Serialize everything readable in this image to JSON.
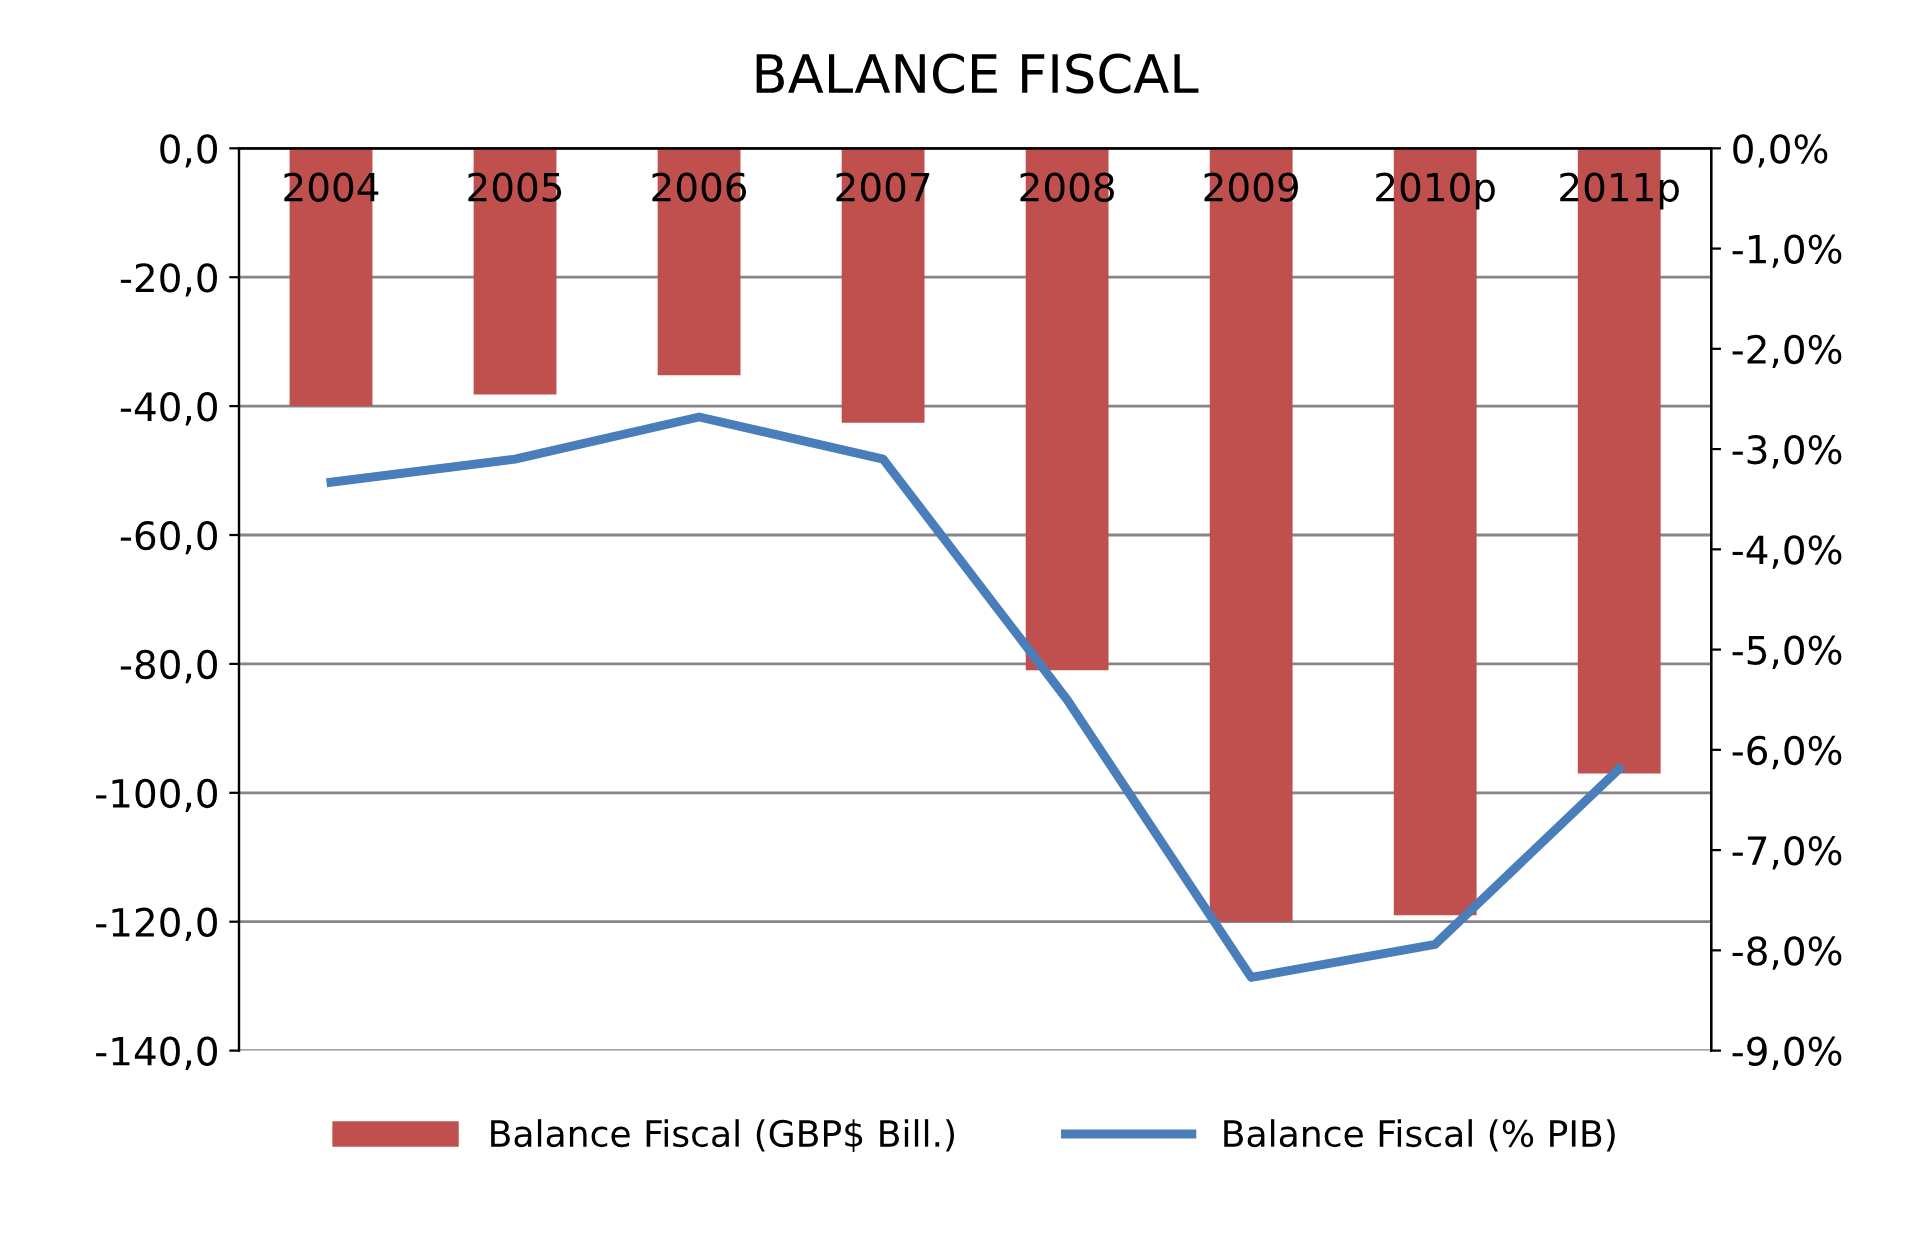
{
  "chart_data": {
    "type": "bar",
    "title": "BALANCE FISCAL",
    "categories": [
      "2004",
      "2005",
      "2006",
      "2007",
      "2008",
      "2009",
      "2010p",
      "2011p"
    ],
    "series": [
      {
        "name": "Balance Fiscal (GBP$ Bill.)",
        "color": "#c0504d",
        "values": [
          -40,
          -38.2,
          -35.2,
          -42.6,
          -81,
          -120,
          -119,
          -97
        ]
      },
      {
        "name": "Balance Fiscal (% PIB)",
        "type": "line",
        "axis": "y2",
        "color": "#4a7ebb",
        "values": [
          -3.33,
          -3.1,
          -2.68,
          -3.1,
          -5.5,
          -8.27,
          -7.94,
          -6.19
        ]
      }
    ],
    "ylim": [
      -140,
      0
    ],
    "yticks": [
      {
        "value": 0,
        "label": "0,0"
      },
      {
        "value": -20,
        "label": "-20,0"
      },
      {
        "value": -40,
        "label": "-40,0"
      },
      {
        "value": -60,
        "label": "-60,0"
      },
      {
        "value": -80,
        "label": "-80,0"
      },
      {
        "value": -100,
        "label": "-100,0"
      },
      {
        "value": -120,
        "label": "-120,0"
      },
      {
        "value": -140,
        "label": "-140,0"
      }
    ],
    "y2lim": [
      -9,
      0
    ],
    "y2ticks": [
      {
        "value": 0,
        "label": "0,0%"
      },
      {
        "value": -1,
        "label": "-1,0%"
      },
      {
        "value": -2,
        "label": "-2,0%"
      },
      {
        "value": -3,
        "label": "-3,0%"
      },
      {
        "value": -4,
        "label": "-4,0%"
      },
      {
        "value": -5,
        "label": "-5,0%"
      },
      {
        "value": -6,
        "label": "-6,0%"
      },
      {
        "value": -7,
        "label": "-7,0%"
      },
      {
        "value": -8,
        "label": "-8,0%"
      },
      {
        "value": -9,
        "label": "-9,0%"
      }
    ],
    "grid": "y",
    "legend": "bottom",
    "line_style": "solid",
    "marker": "none"
  }
}
